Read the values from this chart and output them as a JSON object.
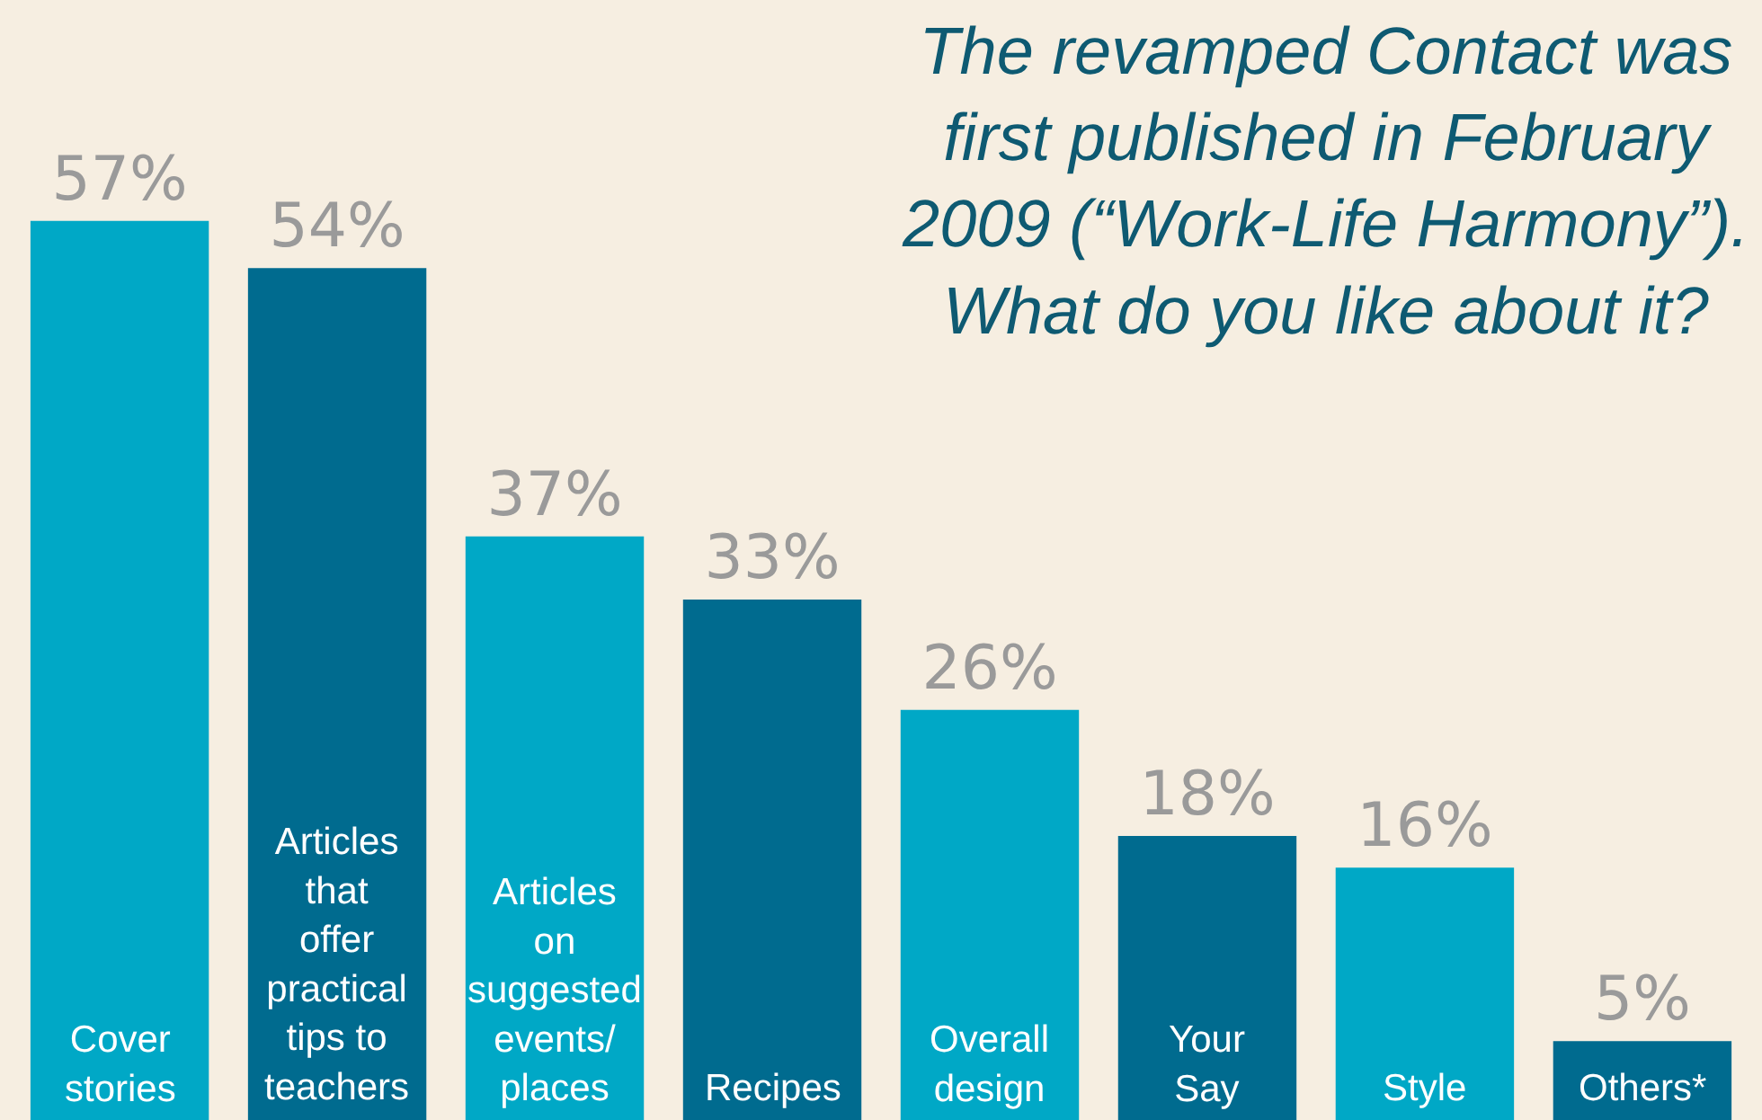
{
  "chart_data": {
    "type": "bar",
    "title": "The revamped Contact was\nfirst published in February\n2009 (“Work-Life Harmony”).\nWhat do you like about it?",
    "categories": [
      "Cover\nstories",
      "Articles\nthat\noffer\npractical\ntips to\nteachers",
      "Articles\non\nsuggested\nevents/\nplaces",
      "Recipes",
      "Overall\ndesign",
      "Your\nSay",
      "Style",
      "Others*"
    ],
    "values": [
      57,
      54,
      37,
      33,
      26,
      18,
      16,
      5
    ],
    "colors": [
      "#00a8c6",
      "#006b8f",
      "#00a8c6",
      "#006b8f",
      "#00a8c6",
      "#006b8f",
      "#00a8c6",
      "#006b8f"
    ],
    "value_labels": [
      "57%",
      "54%",
      "37%",
      "33%",
      "26%",
      "18%",
      "16%",
      "5%"
    ],
    "ylim": [
      0,
      71
    ],
    "tick_labels": false,
    "grid": false,
    "legend": false
  }
}
